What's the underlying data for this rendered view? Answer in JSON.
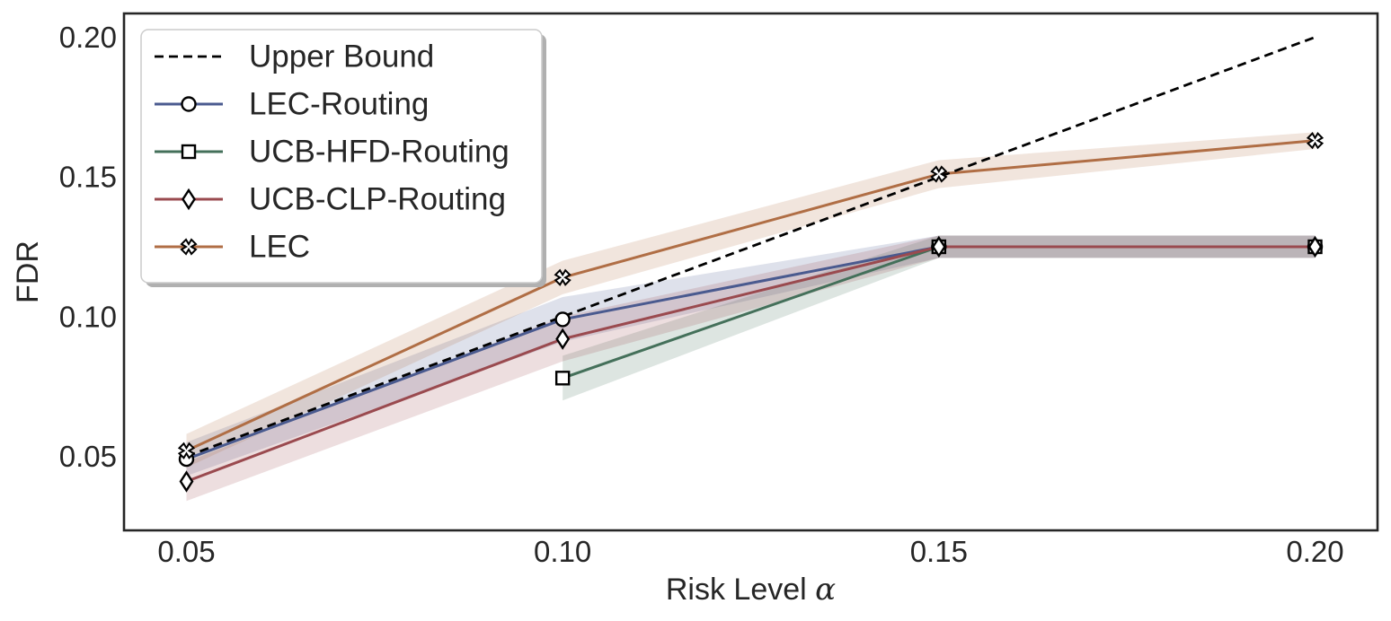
{
  "chart_data": {
    "type": "line",
    "title": "",
    "xlabel": "Risk Level",
    "xlabel_symbol": "α",
    "ylabel": "FDR",
    "x": [
      0.05,
      0.1,
      0.15,
      0.2
    ],
    "xlim": [
      0.0417,
      0.2083
    ],
    "ylim": [
      0.0235,
      0.2085
    ],
    "xticks": [
      0.05,
      0.1,
      0.15,
      0.2
    ],
    "xtick_labels": [
      "0.05",
      "0.10",
      "0.15",
      "0.20"
    ],
    "yticks": [
      0.05,
      0.1,
      0.15,
      0.2
    ],
    "ytick_labels": [
      "0.05",
      "0.10",
      "0.15",
      "0.20"
    ],
    "grid": false,
    "legend_position": "top-left",
    "series": [
      {
        "name": "Upper Bound",
        "style": "dashed",
        "color": "#000000",
        "marker": "none",
        "x": [
          0.05,
          0.2
        ],
        "values": [
          0.05,
          0.2
        ]
      },
      {
        "name": "LEC-Routing",
        "style": "solid",
        "color": "#4a5a8f",
        "marker": "circle",
        "x": [
          0.05,
          0.1,
          0.15,
          0.2
        ],
        "values": [
          0.049,
          0.099,
          0.125,
          0.125
        ],
        "band_low": [
          0.043,
          0.091,
          0.121,
          0.121
        ],
        "band_high": [
          0.055,
          0.107,
          0.129,
          0.129
        ]
      },
      {
        "name": "UCB-HFD-Routing",
        "style": "solid",
        "color": "#44705a",
        "marker": "square",
        "x": [
          0.1,
          0.15,
          0.2
        ],
        "values": [
          0.078,
          0.125,
          0.125
        ],
        "band_low": [
          0.07,
          0.121,
          0.121
        ],
        "band_high": [
          0.086,
          0.129,
          0.129
        ]
      },
      {
        "name": "UCB-CLP-Routing",
        "style": "solid",
        "color": "#9a4a4f",
        "marker": "diamond",
        "x": [
          0.05,
          0.1,
          0.15,
          0.2
        ],
        "values": [
          0.041,
          0.092,
          0.125,
          0.125
        ],
        "band_low": [
          0.034,
          0.084,
          0.121,
          0.121
        ],
        "band_high": [
          0.048,
          0.1,
          0.129,
          0.129
        ]
      },
      {
        "name": "LEC",
        "style": "solid",
        "color": "#b06e45",
        "marker": "x-marker",
        "x": [
          0.05,
          0.1,
          0.15,
          0.2
        ],
        "values": [
          0.052,
          0.114,
          0.151,
          0.163
        ],
        "band_low": [
          0.046,
          0.108,
          0.146,
          0.16
        ],
        "band_high": [
          0.058,
          0.12,
          0.156,
          0.166
        ]
      }
    ]
  }
}
